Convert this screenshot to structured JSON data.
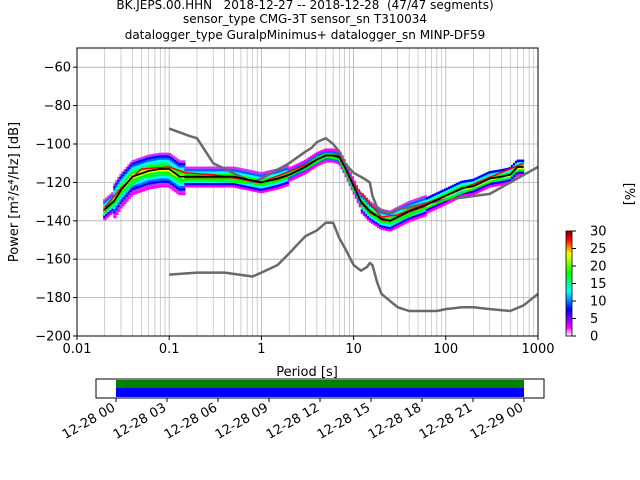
{
  "header": {
    "title_line1": "BK.JEPS.00.HHN   2018-12-27 -- 2018-12-28  (47/47 segments)",
    "title_line2": "sensor_type CMG-3T sensor_sn T310034",
    "title_line3": "datalogger_type GuralpMinimus+ datalogger_sn MINP-DF59"
  },
  "colorbar": {
    "label": "[%]",
    "ticks": [
      "0",
      "5",
      "10",
      "15",
      "20",
      "25",
      "30"
    ],
    "range": [
      0,
      30
    ]
  },
  "timeline": {
    "ticks": [
      "12-28 00",
      "12-28 03",
      "12-28 06",
      "12-28 09",
      "12-28 12",
      "12-28 15",
      "12-28 18",
      "12-28 21",
      "12-29 00"
    ],
    "colors": {
      "top": "#008000",
      "bottom": "#0000ff"
    }
  },
  "chart_data": {
    "type": "line",
    "xlabel": "Period [s]",
    "ylabel": "Power [m²/s⁴/Hz] [dB]",
    "xscale": "log",
    "xlim": [
      0.01,
      1000
    ],
    "ylim": [
      -200,
      -50
    ],
    "xticks": [
      "0.01",
      "0.1",
      "1",
      "10",
      "100",
      "1000"
    ],
    "yticks": [
      "−60",
      "−80",
      "−100",
      "−120",
      "−140",
      "−160",
      "−180",
      "−200"
    ],
    "grid": true,
    "series": [
      {
        "color": "#000000",
        "x": [
          0.02,
          0.025,
          0.03,
          0.04,
          0.06,
          0.08,
          0.1,
          0.13,
          0.2,
          0.3,
          0.5,
          0.8,
          1,
          1.5,
          2,
          3,
          4,
          5,
          6,
          7,
          8,
          10,
          12,
          15,
          20,
          25,
          30,
          40,
          60,
          100,
          150,
          200,
          300,
          400,
          500,
          600,
          700
        ],
        "y": [
          -134,
          -130,
          -124,
          -117,
          -114,
          -113,
          -113,
          -117,
          -117,
          -117,
          -117,
          -119,
          -120,
          -118,
          -116,
          -112,
          -108,
          -106,
          -106,
          -107,
          -112,
          -122,
          -130,
          -135,
          -139,
          -140,
          -138,
          -135,
          -132,
          -127,
          -123,
          -122,
          -118,
          -117,
          -116,
          -112,
          -112
        ]
      },
      {
        "color": "#696969",
        "x": [
          0.1,
          0.17,
          0.2,
          0.3,
          0.8,
          1,
          2,
          3,
          3.5,
          4,
          5,
          6,
          7,
          8,
          10,
          13,
          15,
          16,
          18,
          20,
          25,
          30,
          40,
          60,
          100,
          300,
          1000
        ],
        "y": [
          -92,
          -96,
          -97,
          -110,
          -120,
          -118,
          -110,
          -104,
          -102,
          -99,
          -97,
          -100,
          -104,
          -110,
          -115,
          -118,
          -120,
          -127,
          -133,
          -135,
          -136,
          -134,
          -133,
          -131,
          -129,
          -126,
          -112
        ]
      },
      {
        "color": "#696969",
        "x": [
          0.1,
          0.2,
          0.4,
          0.8,
          1,
          1.5,
          2,
          2.5,
          3,
          4,
          5,
          6,
          7,
          8,
          10,
          12,
          14,
          15,
          16,
          18,
          20,
          30,
          40,
          60,
          80,
          100,
          150,
          200,
          300,
          500,
          700,
          1000
        ],
        "y": [
          -168,
          -167,
          -167,
          -169,
          -167,
          -163,
          -157,
          -152,
          -148,
          -145,
          -141,
          -141,
          -149,
          -154,
          -163,
          -166,
          -164,
          -162,
          -163,
          -172,
          -178,
          -185,
          -187,
          -187,
          -187,
          -186,
          -185,
          -185,
          -186,
          -187,
          -184,
          -178
        ]
      },
      {
        "color": "#00ff00",
        "x": [
          0.02,
          0.03,
          0.05,
          0.1,
          0.15,
          0.3,
          1,
          3,
          5,
          7,
          10,
          20,
          30,
          100,
          700
        ],
        "y": [
          -136,
          -126,
          -117,
          -116,
          -119,
          -119,
          -121,
          -113,
          -107,
          -108,
          -124,
          -141,
          -140,
          -129,
          -113
        ]
      },
      {
        "color": "#ff0000",
        "x": [
          0.02,
          0.03,
          0.05,
          0.1,
          0.15,
          0.3,
          1,
          3,
          5,
          7,
          10,
          20,
          30,
          100,
          700
        ],
        "y": [
          -133,
          -123,
          -113,
          -112,
          -115,
          -116,
          -120,
          -111,
          -106,
          -106,
          -121,
          -138,
          -137,
          -127,
          -110
        ]
      }
    ]
  }
}
